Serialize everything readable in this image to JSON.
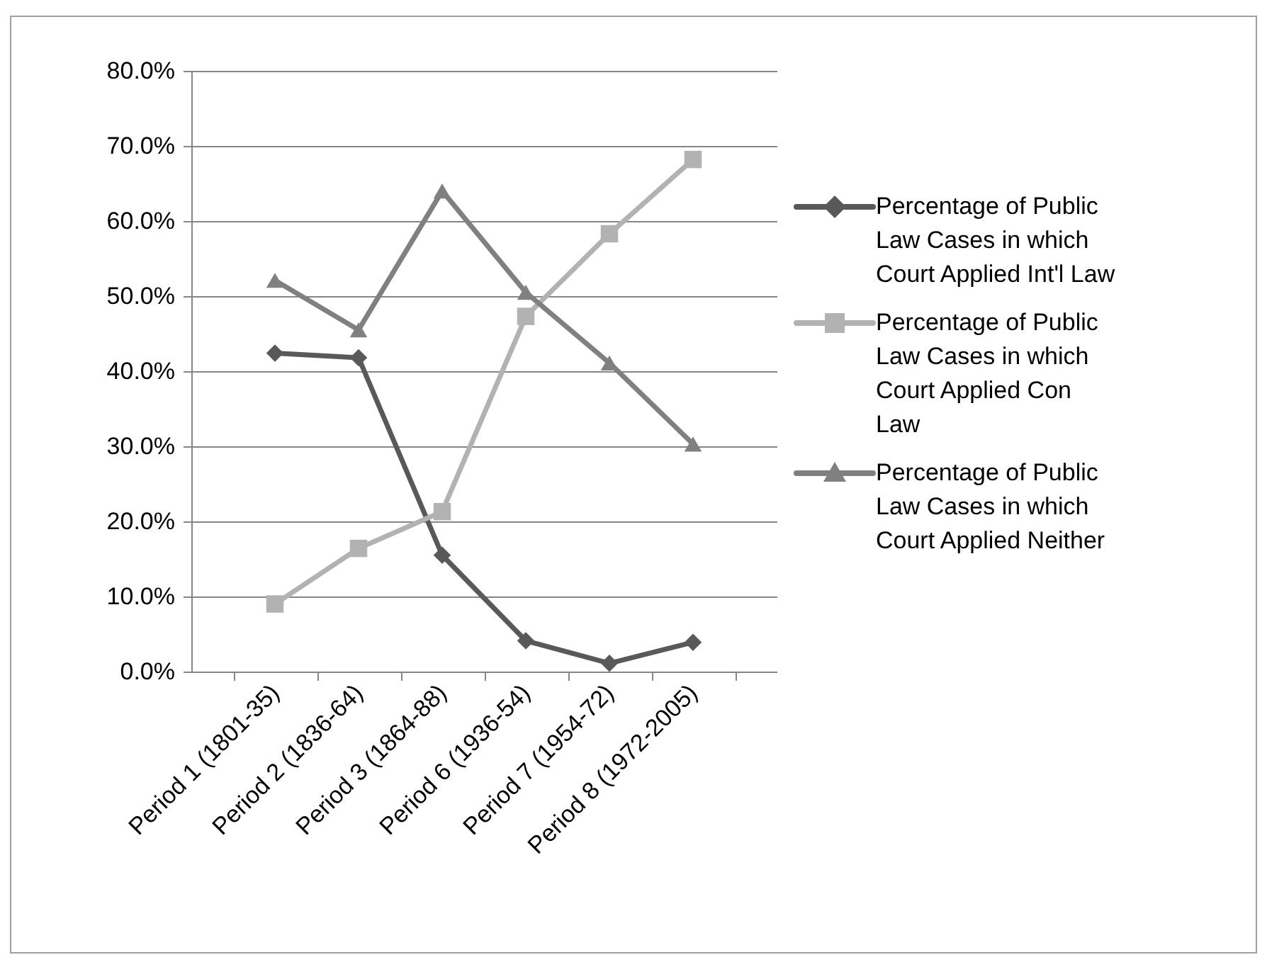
{
  "chart_data": {
    "type": "line",
    "categories": [
      "Period 1  (1801-35)",
      "Period 2 (1836-64)",
      "Period 3 (1864-88)",
      "Period 6 (1936-54)",
      "Period 7 (1954-72)",
      "Period 8 (1972-2005)"
    ],
    "series": [
      {
        "name": "Percentage of Public Law Cases in which Court Applied Int'l Law",
        "color": "#595959",
        "marker": "diamond",
        "values": [
          42.4,
          41.8,
          15.5,
          4.1,
          1.1,
          3.9
        ]
      },
      {
        "name": "Percentage of Public Law Cases in which Court Applied Con Law",
        "color": "#b2b2b2",
        "marker": "square",
        "values": [
          9.0,
          16.4,
          21.3,
          47.3,
          58.3,
          68.2
        ]
      },
      {
        "name": "Percentage of Public Law Cases in which Court Applied Neither",
        "color": "#808080",
        "marker": "triangle",
        "values": [
          52.1,
          45.5,
          64.0,
          50.5,
          41.1,
          30.3
        ]
      }
    ],
    "ylim": [
      0,
      80
    ],
    "yticks": [
      {
        "value": 0,
        "label": "0.0%"
      },
      {
        "value": 10,
        "label": "10.0%"
      },
      {
        "value": 20,
        "label": "20.0%"
      },
      {
        "value": 30,
        "label": "30.0%"
      },
      {
        "value": 40,
        "label": "40.0%"
      },
      {
        "value": 50,
        "label": "50.0%"
      },
      {
        "value": 60,
        "label": "60.0%"
      },
      {
        "value": 70,
        "label": "70.0%"
      },
      {
        "value": 80,
        "label": "80.0%"
      }
    ],
    "grid": "y",
    "legend": "right",
    "line_style": "solid"
  }
}
